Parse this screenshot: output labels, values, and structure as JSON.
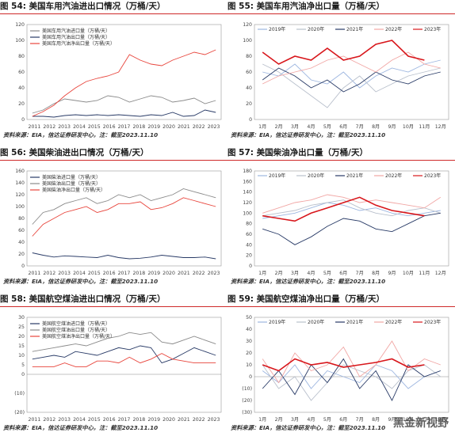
{
  "watermark": "黑金新视野",
  "chart_data": [
    {
      "id": "c54",
      "type": "line",
      "title_num": "图 54:",
      "title": "美国车用汽油进出口情况（万桶/天）",
      "source": "资料来源：EIA，信达证券研发中心，注：截至2023.11.10",
      "x_type": "years",
      "x_ticks": [
        "2011",
        "2012",
        "2013",
        "2014",
        "2015",
        "2016",
        "2017",
        "2018",
        "2019",
        "2020",
        "2021",
        "2022",
        "2023"
      ],
      "ylim": [
        0,
        120
      ],
      "y_ticks": [
        0,
        20,
        40,
        60,
        80,
        100,
        120
      ],
      "legend_pos": "top-left",
      "series": [
        {
          "name": "美国车用汽油进口量（万桶/天）",
          "color": "#8a8a8a",
          "values": [
            8,
            12,
            20,
            26,
            24,
            22,
            24,
            30,
            28,
            22,
            26,
            30,
            28,
            22,
            24,
            27,
            20,
            24
          ]
        },
        {
          "name": "美国车用汽油出口量（万桶/天）",
          "color": "#283a66",
          "values": [
            4,
            4,
            3,
            5,
            6,
            5,
            6,
            5,
            6,
            5,
            4,
            6,
            5,
            9,
            4,
            5,
            12,
            9
          ]
        },
        {
          "name": "美国车用汽油净出口量（万桶/天）",
          "color": "#e8453c",
          "values": [
            4,
            10,
            18,
            30,
            40,
            48,
            52,
            55,
            60,
            82,
            75,
            70,
            68,
            75,
            80,
            85,
            82,
            88
          ]
        }
      ]
    },
    {
      "id": "c55",
      "type": "line",
      "title_num": "图 55:",
      "title": "美国车用汽油净出口量（万桶/天）",
      "source": "资料来源：EIA，信达证券研发中心，注：截至2023.11.10",
      "x_type": "months",
      "x_ticks": [
        "1月",
        "2月",
        "3月",
        "4月",
        "5月",
        "6月",
        "7月",
        "8月",
        "9月",
        "10月",
        "11月",
        "12月"
      ],
      "ylim": [
        0,
        120
      ],
      "y_ticks": [
        0,
        20,
        40,
        60,
        80,
        100,
        120
      ],
      "legend_pos": "top",
      "series": [
        {
          "name": "2019年",
          "color": "#9db6e0",
          "values": [
            60,
            55,
            70,
            50,
            45,
            60,
            40,
            55,
            65,
            60,
            70,
            75
          ]
        },
        {
          "name": "2020年",
          "color": "#b9c0cc",
          "values": [
            70,
            60,
            45,
            30,
            15,
            40,
            55,
            35,
            45,
            55,
            60,
            65
          ]
        },
        {
          "name": "2021年",
          "color": "#283a66",
          "values": [
            50,
            65,
            55,
            40,
            50,
            35,
            45,
            60,
            50,
            45,
            55,
            60
          ]
        },
        {
          "name": "2022年",
          "color": "#f1a6a4",
          "values": [
            45,
            55,
            60,
            65,
            75,
            80,
            70,
            60,
            75,
            85,
            70,
            65
          ]
        },
        {
          "name": "2023年",
          "color": "#d8161b",
          "values": [
            85,
            70,
            80,
            75,
            90,
            75,
            80,
            95,
            100,
            80,
            75,
            null
          ]
        }
      ]
    },
    {
      "id": "c56",
      "type": "line",
      "title_num": "图 56:",
      "title": "美国柴油进出口情况（万桶/天）",
      "source": "资料来源：EIA，信达证券研发中心，注：截至2023.11.10",
      "x_type": "years",
      "x_ticks": [
        "2011",
        "2012",
        "2013",
        "2014",
        "2015",
        "2016",
        "2017",
        "2018",
        "2019",
        "2020",
        "2021",
        "2022",
        "2023"
      ],
      "ylim": [
        0,
        160
      ],
      "y_ticks": [
        0,
        20,
        40,
        60,
        80,
        100,
        120,
        140,
        160
      ],
      "legend_pos": "top-left",
      "series": [
        {
          "name": "美国柴油进口量（万桶/天）",
          "color": "#283a66",
          "values": [
            22,
            18,
            15,
            17,
            16,
            15,
            14,
            18,
            14,
            12,
            13,
            15,
            18,
            16,
            14,
            14,
            15,
            12
          ]
        },
        {
          "name": "美国柴油出口量（万桶/天）",
          "color": "#8a8a8a",
          "values": [
            70,
            90,
            95,
            105,
            110,
            115,
            105,
            110,
            120,
            115,
            120,
            110,
            115,
            120,
            130,
            125,
            120,
            115
          ]
        },
        {
          "name": "美国柴油净出口量（万桶/天）",
          "color": "#e8453c",
          "values": [
            50,
            70,
            80,
            90,
            95,
            100,
            90,
            95,
            105,
            105,
            108,
            95,
            98,
            105,
            115,
            110,
            105,
            100
          ]
        }
      ]
    },
    {
      "id": "c57",
      "type": "line",
      "title_num": "图 57:",
      "title": "美国柴油净出口量（万桶/天）",
      "source": "资料来源：EIA，信达证券研发中心，注：截至2023.11.10",
      "x_type": "months",
      "x_ticks": [
        "1月",
        "2月",
        "3月",
        "4月",
        "5月",
        "6月",
        "7月",
        "8月",
        "9月",
        "10月",
        "11月",
        "12月"
      ],
      "ylim": [
        0,
        180
      ],
      "y_ticks": [
        0,
        20,
        40,
        60,
        80,
        100,
        120,
        140,
        160,
        180
      ],
      "legend_pos": "top",
      "series": [
        {
          "name": "2019年",
          "color": "#9db6e0",
          "values": [
            90,
            95,
            100,
            110,
            120,
            115,
            105,
            110,
            100,
            95,
            100,
            105
          ]
        },
        {
          "name": "2020年",
          "color": "#b9c0cc",
          "values": [
            95,
            100,
            105,
            115,
            120,
            125,
            110,
            100,
            95,
            105,
            110,
            100
          ]
        },
        {
          "name": "2021年",
          "color": "#283a66",
          "values": [
            70,
            60,
            40,
            55,
            75,
            90,
            85,
            70,
            65,
            80,
            95,
            100
          ]
        },
        {
          "name": "2022年",
          "color": "#f1a6a4",
          "values": [
            100,
            110,
            120,
            125,
            135,
            130,
            120,
            125,
            120,
            115,
            110,
            130
          ]
        },
        {
          "name": "2023年",
          "color": "#d8161b",
          "values": [
            95,
            90,
            85,
            100,
            110,
            120,
            130,
            115,
            105,
            100,
            95,
            null
          ]
        }
      ]
    },
    {
      "id": "c58",
      "type": "line",
      "title_num": "图 58:",
      "title": "美国航空煤油进出口情况（万桶/天）",
      "source": "资料来源：EIA，信达证券研发中心，注：截至2023.11.10",
      "x_type": "years",
      "x_ticks": [
        "2011",
        "2012",
        "2013",
        "2014",
        "2015",
        "2016",
        "2017",
        "2018",
        "2019",
        "2020",
        "2021",
        "2022",
        "2023"
      ],
      "ylim": [
        -20,
        30
      ],
      "y_ticks": [
        -20,
        -10,
        0,
        5,
        10,
        15,
        20,
        25,
        30
      ],
      "y_tick_labels": [
        "(20)",
        "(10)",
        "0",
        "5",
        "10",
        "15",
        "20",
        "25",
        "30"
      ],
      "legend_pos": "top-left",
      "series": [
        {
          "name": "美国航空煤油进口量（万桶/天）",
          "color": "#283a66",
          "values": [
            8,
            9,
            10,
            9,
            12,
            11,
            10,
            12,
            14,
            13,
            15,
            14,
            6,
            8,
            11,
            14,
            12,
            10
          ]
        },
        {
          "name": "美国航空煤油出口量（万桶/天）",
          "color": "#8a8a8a",
          "values": [
            12,
            13,
            14,
            15,
            16,
            15,
            17,
            19,
            20,
            22,
            21,
            22,
            17,
            16,
            18,
            20,
            18,
            16
          ]
        },
        {
          "name": "美国航空煤油净出口量（万桶/天）",
          "color": "#e8453c",
          "values": [
            4,
            4,
            4,
            6,
            4,
            4,
            7,
            7,
            6,
            9,
            6,
            8,
            11,
            8,
            7,
            6,
            6,
            6
          ]
        }
      ]
    },
    {
      "id": "c59",
      "type": "line",
      "title_num": "图 59:",
      "title": "美国航空煤油净出口量（万桶/天）",
      "source": "资料来源：EIA，信达证券研发中心，注：截至2023.11.10",
      "x_type": "months",
      "x_ticks": [
        "1月",
        "2月",
        "3月",
        "4月",
        "5月",
        "6月",
        "7月",
        "8月",
        "9月",
        "10月",
        "11月",
        "12月"
      ],
      "ylim": [
        -30,
        50
      ],
      "y_ticks": [
        -30,
        -20,
        -10,
        0,
        10,
        20,
        30,
        40,
        50
      ],
      "y_tick_labels": [
        "(30)",
        "(20)",
        "(10)",
        "0",
        "10",
        "20",
        "30",
        "40",
        "50"
      ],
      "legend_pos": "top",
      "series": [
        {
          "name": "2019年",
          "color": "#9db6e0",
          "values": [
            5,
            -5,
            10,
            -10,
            5,
            0,
            -5,
            10,
            5,
            -10,
            0,
            5
          ]
        },
        {
          "name": "2020年",
          "color": "#b9c0cc",
          "values": [
            10,
            -10,
            0,
            -20,
            -5,
            10,
            5,
            0,
            -10,
            5,
            10,
            0
          ]
        },
        {
          "name": "2021年",
          "color": "#283a66",
          "values": [
            -10,
            5,
            -15,
            10,
            -5,
            15,
            -10,
            5,
            -20,
            10,
            0,
            5
          ]
        },
        {
          "name": "2022年",
          "color": "#f1a6a4",
          "values": [
            15,
            -5,
            20,
            5,
            10,
            25,
            0,
            10,
            30,
            5,
            15,
            10
          ]
        },
        {
          "name": "2023年",
          "color": "#d8161b",
          "values": [
            10,
            5,
            15,
            10,
            12,
            8,
            10,
            12,
            15,
            8,
            10,
            null
          ]
        }
      ]
    }
  ]
}
